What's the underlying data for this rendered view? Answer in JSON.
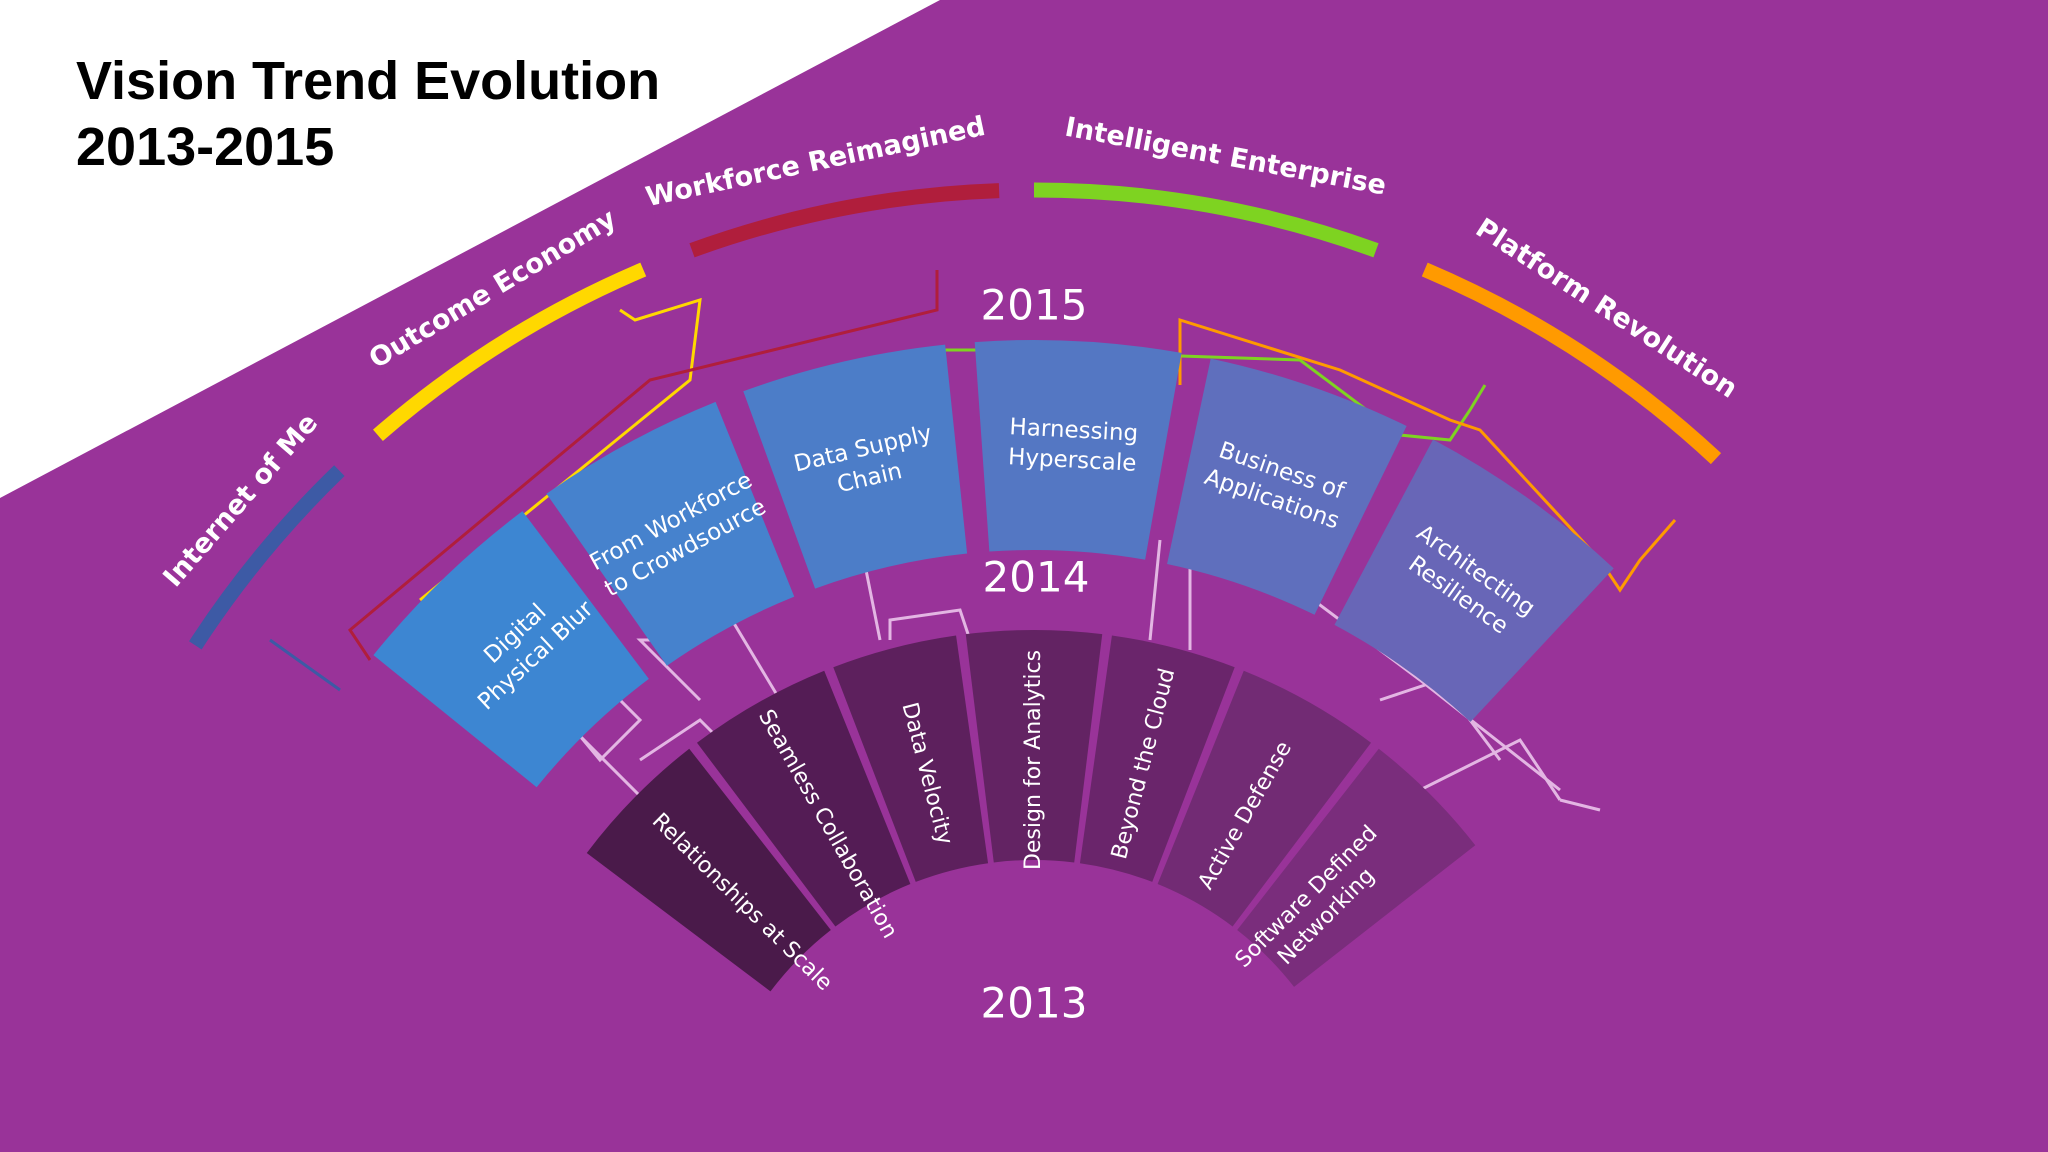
{
  "title": {
    "line1": "Vision Trend Evolution",
    "line2": "2013-2015"
  },
  "colors": {
    "background": "#993399",
    "ring_2013": [
      "#4a1a4a",
      "#541c55",
      "#5d205d",
      "#632363",
      "#6a256b",
      "#722b74",
      "#7a2d7c"
    ],
    "ring_2014": [
      "#3d86d2",
      "#4682cd",
      "#4c7dc8",
      "#5477c3",
      "#5f6fbd",
      "#6866b7",
      "#755db2"
    ],
    "themes": {
      "internet_of_me": "#3d5aa5",
      "outcome_economy": "#ffd800",
      "workforce_reimagined": "#b01e3c",
      "intelligent_enterprise": "#7ed321",
      "platform_revolution": "#ff9a00"
    },
    "connector_light": "#e3b6e3"
  },
  "years": {
    "y2013": "2013",
    "y2014": "2014",
    "y2015": "2015"
  },
  "trends_2013": [
    {
      "label": "Relationships at Scale"
    },
    {
      "label": "Seamless Collaboration"
    },
    {
      "label": "Data Velocity"
    },
    {
      "label": "Design for Analytics"
    },
    {
      "label": "Beyond the Cloud"
    },
    {
      "label": "Active Defense"
    },
    {
      "label": "Software Defined",
      "label2": "Networking"
    }
  ],
  "trends_2014": [
    {
      "label": "Digital",
      "label2": "Physical Blur"
    },
    {
      "label": "From Workforce",
      "label2": "to Crowdsource"
    },
    {
      "label": "Data Supply",
      "label2": "Chain"
    },
    {
      "label": "Harnessing",
      "label2": "Hyperscale"
    },
    {
      "label": "Business of",
      "label2": "Applications"
    },
    {
      "label": "Architecting",
      "label2": "Resilience"
    }
  ],
  "trends_2015": [
    {
      "label": "Internet of Me"
    },
    {
      "label": "Outcome Economy"
    },
    {
      "label": "Workforce Reimagined"
    },
    {
      "label": "Intelligent Enterprise"
    },
    {
      "label": "Platform Revolution"
    }
  ]
}
